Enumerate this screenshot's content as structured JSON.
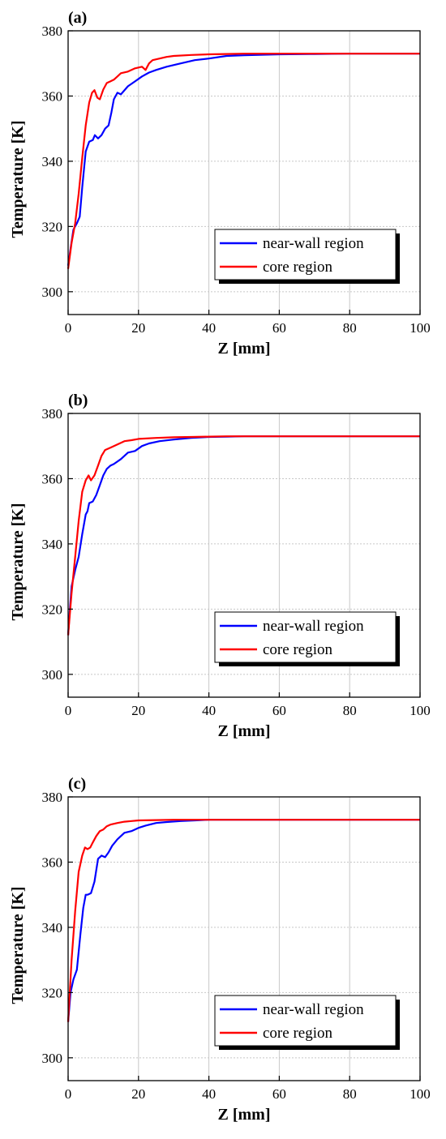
{
  "chart_data": [
    {
      "type": "line",
      "panel_label": "(a)",
      "xlabel": "Z [mm]",
      "ylabel": "Temperature [K]",
      "xlim": [
        0,
        100
      ],
      "ylim": [
        293,
        380
      ],
      "xticks": [
        0,
        20,
        40,
        60,
        80,
        100
      ],
      "yticks": [
        300,
        320,
        340,
        360,
        380
      ],
      "grid": true,
      "legend_position": "bottom-right",
      "series": [
        {
          "name": "near-wall region",
          "color": "#0000ff",
          "x": [
            0,
            0.8,
            1.5,
            2.5,
            3.3,
            4,
            5,
            6,
            7,
            7.6,
            8.5,
            9.5,
            10.5,
            11.5,
            12.3,
            13,
            14,
            15,
            17,
            19,
            21,
            23,
            25,
            28,
            32,
            36,
            40,
            45,
            50,
            60,
            70,
            80,
            90,
            100
          ],
          "y": [
            308,
            314,
            319,
            321,
            323,
            332,
            343,
            346,
            346.5,
            348,
            347,
            348,
            350,
            351,
            355,
            359,
            361,
            360.5,
            363,
            364.5,
            366,
            367.2,
            368,
            369,
            370,
            371,
            371.5,
            372.3,
            372.5,
            372.8,
            372.9,
            373,
            373,
            373
          ]
        },
        {
          "name": "core region",
          "color": "#ff0000",
          "x": [
            0,
            1,
            2,
            3,
            4,
            5,
            6,
            6.8,
            7.5,
            8.3,
            9,
            10,
            11,
            12,
            13,
            14,
            15,
            17,
            19,
            21,
            22,
            23,
            24,
            26,
            28,
            30,
            35,
            40,
            45,
            50,
            60,
            70,
            80,
            90,
            100
          ],
          "y": [
            307,
            315,
            321,
            330,
            341,
            351,
            358,
            361,
            361.8,
            359.5,
            359,
            362,
            364,
            364.5,
            365,
            366,
            367,
            367.5,
            368.5,
            369,
            368,
            370,
            371,
            371.5,
            372,
            372.3,
            372.6,
            372.8,
            372.9,
            373,
            373,
            373,
            373,
            373,
            373
          ]
        }
      ]
    },
    {
      "type": "line",
      "panel_label": "(b)",
      "xlabel": "Z [mm]",
      "ylabel": "Temperature [K]",
      "xlim": [
        0,
        100
      ],
      "ylim": [
        293,
        380
      ],
      "xticks": [
        0,
        20,
        40,
        60,
        80,
        100
      ],
      "yticks": [
        300,
        320,
        340,
        360,
        380
      ],
      "grid": true,
      "legend_position": "bottom-right",
      "series": [
        {
          "name": "near-wall region",
          "color": "#0000ff",
          "x": [
            0,
            0.5,
            1,
            2,
            3,
            4,
            5,
            5.5,
            6,
            7,
            8,
            9,
            10,
            11,
            12,
            13,
            15,
            17,
            19,
            21,
            23,
            26,
            30,
            35,
            40,
            45,
            50,
            60,
            70,
            80,
            90,
            100
          ],
          "y": [
            312,
            320,
            327,
            332,
            336,
            343,
            349,
            350,
            352.5,
            353,
            355,
            358,
            361,
            363,
            364,
            364.5,
            366,
            368,
            368.5,
            370,
            370.8,
            371.5,
            372,
            372.5,
            372.8,
            372.9,
            373,
            373,
            373,
            373,
            373,
            373
          ]
        },
        {
          "name": "core region",
          "color": "#ff0000",
          "x": [
            0,
            1,
            2,
            3,
            4,
            5,
            5.8,
            6.5,
            7.5,
            8.5,
            9.5,
            10.5,
            12,
            14,
            16,
            18,
            20,
            25,
            30,
            35,
            40,
            45,
            50,
            60,
            70,
            80,
            90,
            100
          ],
          "y": [
            312,
            325,
            336,
            347,
            356,
            359.5,
            361,
            359.5,
            361,
            364,
            367,
            368.8,
            369.5,
            370.5,
            371.5,
            371.8,
            372.2,
            372.5,
            372.7,
            372.8,
            372.9,
            373,
            373,
            373,
            373,
            373,
            373,
            373
          ]
        }
      ]
    },
    {
      "type": "line",
      "panel_label": "(c)",
      "xlabel": "Z [mm]",
      "ylabel": "Temperature [K]",
      "xlim": [
        0,
        100
      ],
      "ylim": [
        293,
        380
      ],
      "xticks": [
        0,
        20,
        40,
        60,
        80,
        100
      ],
      "yticks": [
        300,
        320,
        340,
        360,
        380
      ],
      "grid": true,
      "legend_position": "bottom-right",
      "series": [
        {
          "name": "near-wall region",
          "color": "#0000ff",
          "x": [
            0,
            0.7,
            1.5,
            2.5,
            3.5,
            4.3,
            5,
            5.5,
            6.5,
            7.5,
            8.5,
            9.5,
            10.5,
            11.5,
            12.5,
            14,
            16,
            18,
            20,
            22,
            25,
            28,
            32,
            36,
            40,
            50,
            60,
            70,
            80,
            90,
            100
          ],
          "y": [
            311,
            320,
            324,
            327,
            338,
            346,
            350,
            350,
            350.5,
            354,
            361,
            362,
            361.5,
            363,
            365,
            367,
            369,
            369.5,
            370.5,
            371.2,
            372,
            372.3,
            372.6,
            372.8,
            373,
            373,
            373,
            373,
            373,
            373,
            373
          ]
        },
        {
          "name": "core region",
          "color": "#ff0000",
          "x": [
            0,
            1,
            2,
            3,
            4,
            4.8,
            5.5,
            6.3,
            7,
            8,
            9,
            10,
            11,
            12,
            14,
            16,
            18,
            20,
            25,
            30,
            35,
            40,
            50,
            60,
            70,
            80,
            90,
            100
          ],
          "y": [
            311,
            330,
            345,
            357,
            362,
            364.5,
            364,
            364.5,
            366,
            368,
            369.5,
            370,
            371,
            371.5,
            372,
            372.4,
            372.6,
            372.8,
            372.9,
            373,
            373,
            373,
            373,
            373,
            373,
            373,
            373,
            373
          ]
        }
      ]
    }
  ]
}
